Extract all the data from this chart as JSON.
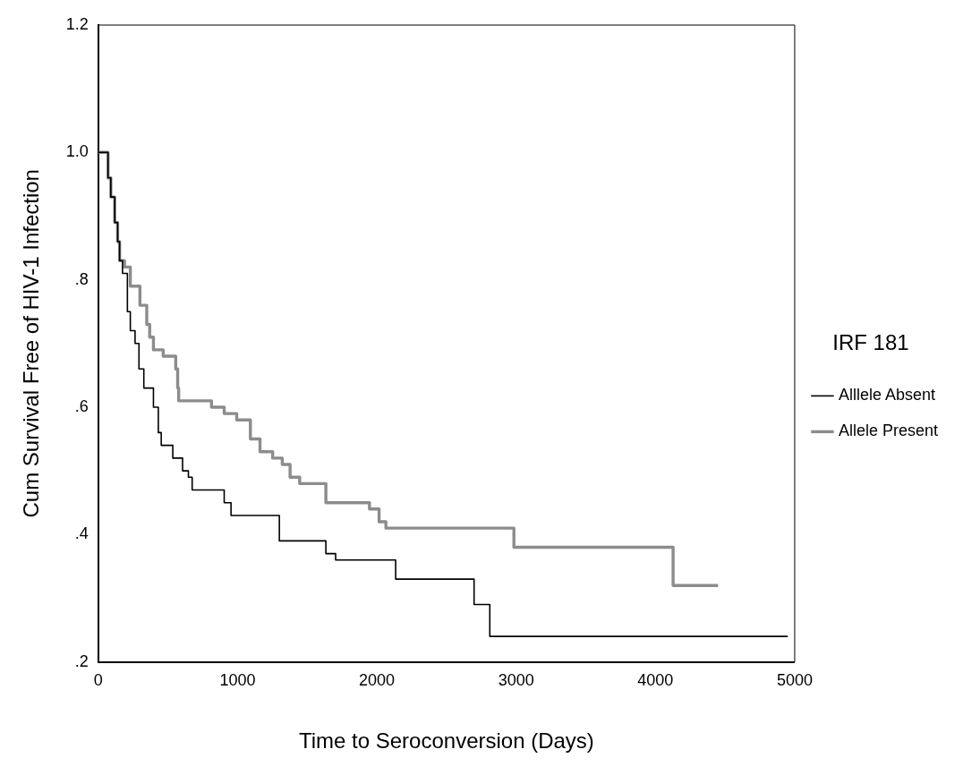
{
  "chart_data": {
    "type": "step",
    "xlabel": "Time to Seroconversion (Days)",
    "ylabel": "Cum Survival Free of HIV-1 Infection",
    "legend_title": "IRF 181",
    "legend": "right",
    "grid": false,
    "marker": "none",
    "line_style": "solid",
    "xlim": [
      0,
      5000
    ],
    "xticks": [
      0,
      1000,
      2000,
      3000,
      4000,
      5000
    ],
    "ylim": [
      0.2,
      1.2
    ],
    "yticks": [
      {
        "value": 0.2,
        "label": ".2"
      },
      {
        "value": 0.4,
        "label": ".4"
      },
      {
        "value": 0.6,
        "label": ".6"
      },
      {
        "value": 0.8,
        "label": ".8"
      },
      {
        "value": 1.0,
        "label": "1.0"
      },
      {
        "value": 1.2,
        "label": "1.2"
      }
    ],
    "series": [
      {
        "name": "Alllele Absent",
        "color": "#000000",
        "x": [
          0,
          70,
          90,
          118,
          139,
          153,
          174,
          209,
          230,
          264,
          292,
          327,
          396,
          431,
          452,
          535,
          605,
          647,
          674,
          904,
          953,
          1300,
          1634,
          1704,
          2135,
          2698,
          2811,
          4950
        ],
        "values": [
          1.0,
          0.96,
          0.93,
          0.89,
          0.86,
          0.83,
          0.81,
          0.75,
          0.72,
          0.7,
          0.66,
          0.63,
          0.6,
          0.56,
          0.54,
          0.52,
          0.5,
          0.49,
          0.47,
          0.45,
          0.43,
          0.39,
          0.37,
          0.36,
          0.33,
          0.29,
          0.24,
          0.24
        ]
      },
      {
        "name": "Allele Present",
        "color": "#8c8c8c",
        "x": [
          0,
          70,
          90,
          118,
          139,
          153,
          188,
          230,
          299,
          348,
          369,
          396,
          466,
          556,
          570,
          577,
          813,
          904,
          994,
          1092,
          1161,
          1252,
          1321,
          1377,
          1446,
          1634,
          1947,
          2016,
          2065,
          2984,
          4127,
          4450
        ],
        "values": [
          1.0,
          0.96,
          0.93,
          0.89,
          0.86,
          0.83,
          0.82,
          0.79,
          0.76,
          0.73,
          0.71,
          0.69,
          0.68,
          0.66,
          0.63,
          0.61,
          0.6,
          0.59,
          0.58,
          0.55,
          0.53,
          0.52,
          0.51,
          0.49,
          0.48,
          0.45,
          0.44,
          0.42,
          0.41,
          0.38,
          0.32,
          0.32
        ]
      }
    ]
  }
}
